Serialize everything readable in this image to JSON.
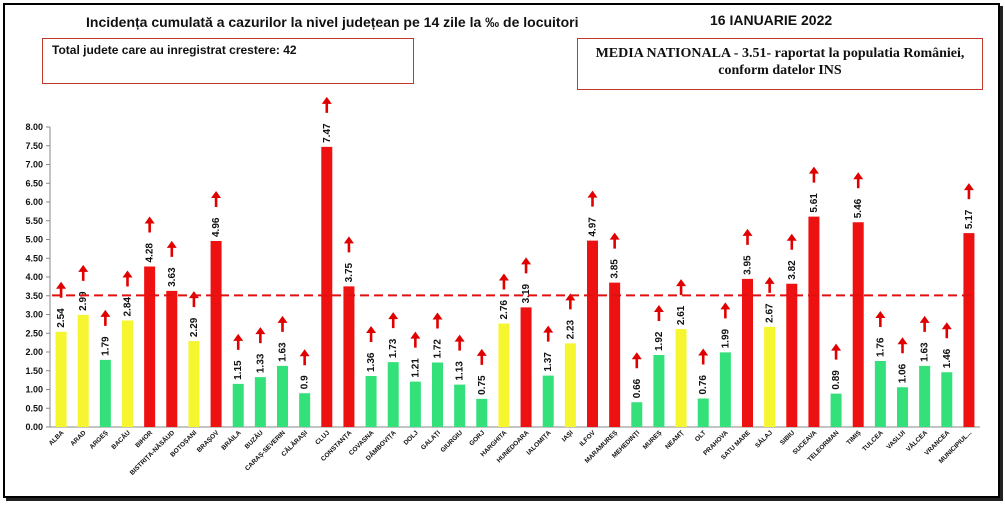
{
  "header": {
    "title": "Incidența cumulată a cazurilor la nivel județean pe 14 zile la ‰ de locuitori",
    "date": "16 IANUARIE 2022"
  },
  "info": {
    "growth_text": "Total judete care au inregistrat crestere: 42",
    "national_line1": "MEDIA NATIONALA - 3.51-  raportat la populatia României,",
    "national_line2": "conform datelor INS"
  },
  "colors": {
    "red": "#ee1111",
    "yellow": "#f5f530",
    "green": "#33e07a",
    "arrow": "#e00000",
    "reference": "#e01010"
  },
  "chart_data": {
    "type": "bar",
    "title": "Incidența cumulată a cazurilor la nivel județean pe 14 zile la ‰ de locuitori",
    "xlabel": "",
    "ylabel": "",
    "ylim": [
      0,
      8
    ],
    "yticks": [
      "0.00",
      "0.50",
      "1.00",
      "1.50",
      "2.00",
      "2.50",
      "3.00",
      "3.50",
      "4.00",
      "4.50",
      "5.00",
      "5.50",
      "6.00",
      "6.50",
      "7.00",
      "7.50",
      "8.00"
    ],
    "grid": false,
    "reference_line": 3.51,
    "categories": [
      "ALBA",
      "ARAD",
      "ARGEȘ",
      "BACĂU",
      "BIHOR",
      "BISTRIȚA-NĂSĂUD",
      "BOTOȘANI",
      "BRAȘOV",
      "BRĂILA",
      "BUZĂU",
      "CARAȘ-SEVERIN",
      "CĂLĂRAȘI",
      "CLUJ",
      "CONSTANȚA",
      "COVASNA",
      "DÂMBOVIȚA",
      "DOLJ",
      "GALAȚI",
      "GIURGIU",
      "GORJ",
      "HARGHITA",
      "HUNEDOARA",
      "IALOMIȚA",
      "IAȘI",
      "ILFOV",
      "MARAMUREȘ",
      "MEHEDINȚI",
      "MUREȘ",
      "NEAMȚ",
      "OLT",
      "PRAHOVA",
      "SATU MARE",
      "SĂLAJ",
      "SIBIU",
      "SUCEAVA",
      "TELEORMAN",
      "TIMIȘ",
      "TULCEA",
      "VASLUI",
      "VÂLCEA",
      "VRANCEA",
      "MUNICIPIUL..."
    ],
    "values": [
      2.54,
      2.99,
      1.79,
      2.84,
      4.28,
      3.63,
      2.29,
      4.96,
      1.15,
      1.33,
      1.63,
      0.9,
      7.47,
      3.75,
      1.36,
      1.73,
      1.21,
      1.72,
      1.13,
      0.75,
      2.76,
      3.19,
      1.37,
      2.23,
      4.97,
      3.85,
      0.66,
      1.92,
      2.61,
      0.76,
      1.99,
      3.95,
      2.67,
      3.82,
      5.61,
      0.89,
      5.46,
      1.76,
      1.06,
      1.63,
      1.46,
      5.17
    ],
    "value_labels": [
      "2.54",
      "2.99",
      "1.79",
      "2.84",
      "4.28",
      "3.63",
      "2.29",
      "4.96",
      "1.15",
      "1.33",
      "1.63",
      "0.9",
      "7.47",
      "3.75",
      "1.36",
      "1.73",
      "1.21",
      "1.72",
      "1.13",
      "0.75",
      "2.76",
      "3.19",
      "1.37",
      "2.23",
      "4.97",
      "3.85",
      "0.66",
      "1.92",
      "2.61",
      "0.76",
      "1.99",
      "3.95",
      "2.67",
      "3.82",
      "5.61",
      "0.89",
      "5.46",
      "1.76",
      "1.06",
      "1.63",
      "1.46",
      "5.17"
    ],
    "bar_colors": [
      "yellow",
      "yellow",
      "green",
      "yellow",
      "red",
      "red",
      "yellow",
      "red",
      "green",
      "green",
      "green",
      "green",
      "red",
      "red",
      "green",
      "green",
      "green",
      "green",
      "green",
      "green",
      "yellow",
      "red",
      "green",
      "yellow",
      "red",
      "red",
      "green",
      "green",
      "yellow",
      "green",
      "green",
      "red",
      "yellow",
      "red",
      "red",
      "green",
      "red",
      "green",
      "green",
      "green",
      "green",
      "red"
    ],
    "trend": "up"
  }
}
